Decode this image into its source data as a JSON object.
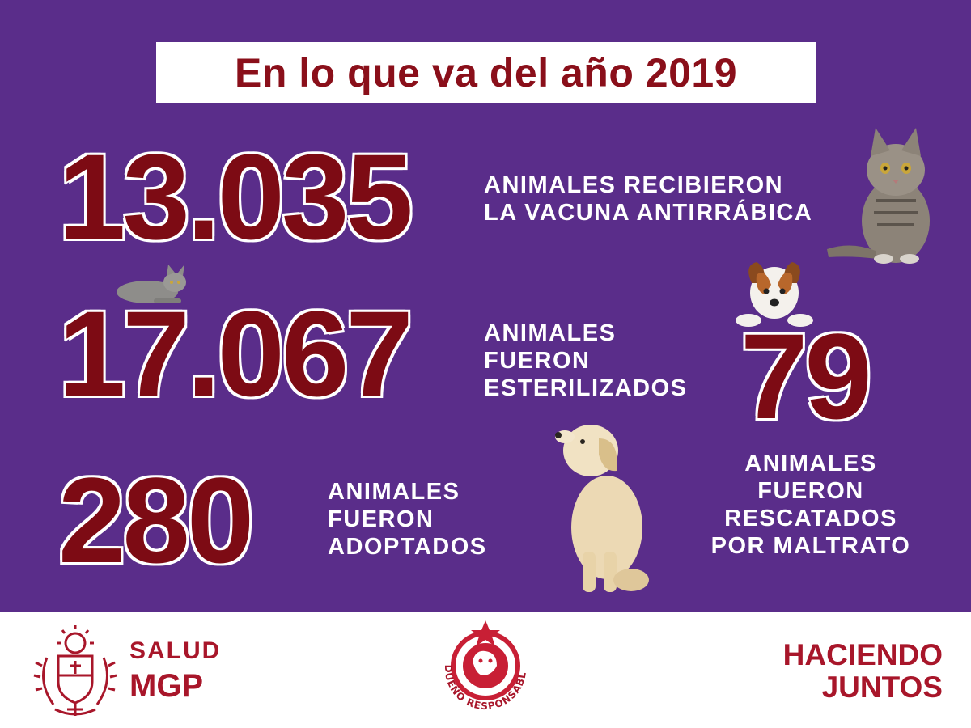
{
  "title": "En lo que va del año 2019",
  "stats": [
    {
      "value": "13.035",
      "lines": [
        "ANIMALES RECIBIERON",
        "LA VACUNA ANTIRRÁBICA"
      ]
    },
    {
      "value": "17.067",
      "lines": [
        "ANIMALES",
        "FUERON",
        "ESTERILIZADOS"
      ]
    },
    {
      "value": "280",
      "lines": [
        "ANIMALES",
        "FUERON",
        "ADOPTADOS"
      ]
    },
    {
      "value": "79",
      "lines": [
        "ANIMALES",
        "FUERON",
        "RESCATADOS",
        "POR MALTRATO"
      ]
    }
  ],
  "footer": {
    "left_line1": "SALUD",
    "left_line2": "MGP",
    "center_logo_text": "DUEÑO RESPONSABLE",
    "right_line1": "HACIENDO",
    "right_line2": "JUNTOS"
  },
  "colors": {
    "background": "#5a2d8a",
    "number": "#7d0b14",
    "title": "#8a0f1a",
    "footer_accent": "#a8162a"
  },
  "icons": [
    "tabby-cat-icon",
    "lying-cat-icon",
    "terrier-puppy-icon",
    "golden-puppy-icon",
    "coat-of-arms-icon",
    "pet-logo-icon"
  ]
}
